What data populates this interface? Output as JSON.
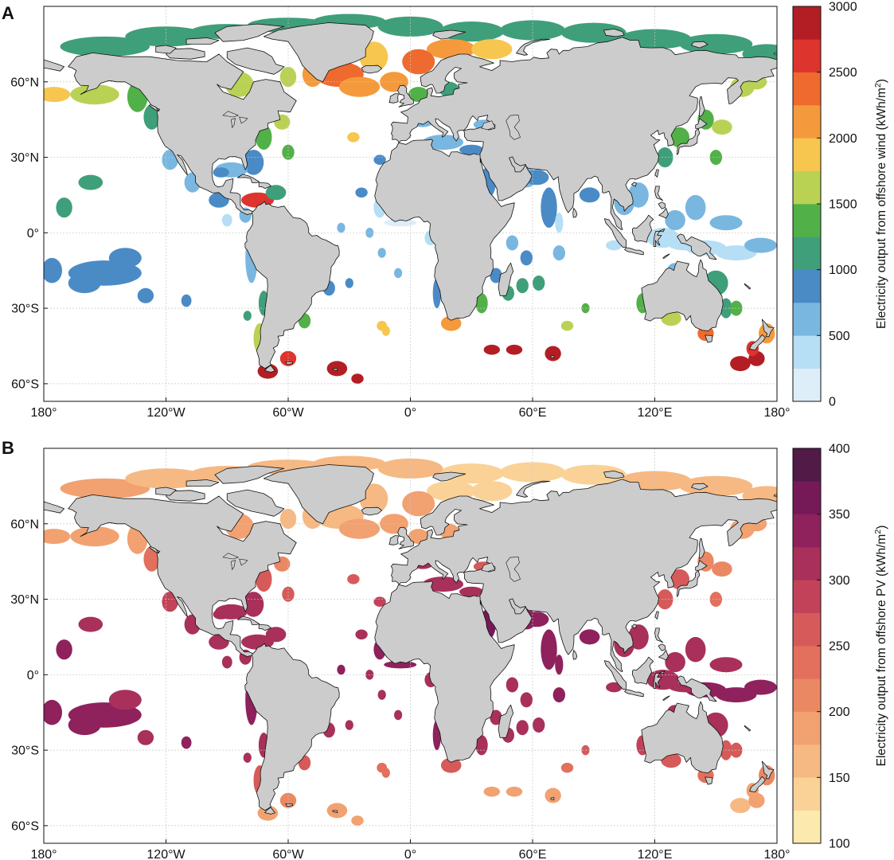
{
  "colors": {
    "ocean": "#ffffff",
    "land": "#cccccc",
    "coast": "#111111",
    "grid": "#c8c8c8"
  },
  "panels": [
    {
      "id": "A",
      "letter": "A",
      "colorbar": {
        "label": "Electricity output from offshore wind (kWh/m",
        "label_sup": "2",
        "label_end": ")",
        "min": 0,
        "max": 3000,
        "ticks": [
          "0",
          "500",
          "1000",
          "1500",
          "2000",
          "2500",
          "3000"
        ],
        "colors": [
          "#deeef9",
          "#b6def4",
          "#79b7e1",
          "#4a8bc6",
          "#3f9f7a",
          "#52b048",
          "#b9d254",
          "#f6c64f",
          "#f59a3c",
          "#ee6a2f",
          "#dd342d",
          "#b31e24"
        ]
      }
    },
    {
      "id": "B",
      "letter": "B",
      "colorbar": {
        "label": "Electricity output from offshore PV (kWh/m",
        "label_sup": "2",
        "label_end": ")",
        "min": 100,
        "max": 400,
        "ticks": [
          "100",
          "150",
          "200",
          "250",
          "300",
          "350",
          "400"
        ],
        "colors": [
          "#fbe9ad",
          "#fad297",
          "#f6b983",
          "#f2a171",
          "#eb8864",
          "#e2705c",
          "#d65a5a",
          "#c24359",
          "#a8305b",
          "#8f215d",
          "#751a57",
          "#521a46"
        ]
      }
    }
  ],
  "axes": {
    "x_ticks": [
      "180°",
      "120°W",
      "60°W",
      "0°",
      "60°E",
      "120°E",
      "180°"
    ],
    "y_ticks": [
      "60°N",
      "30°N",
      "0°",
      "30°S",
      "60°S"
    ]
  },
  "chart_data": {
    "type": "heatmap",
    "projection": "equirectangular",
    "x_range": [
      -180,
      180
    ],
    "y_range": [
      -67,
      90
    ],
    "grid": true,
    "legend_placement": "right",
    "panels": [
      {
        "letter": "A",
        "variable": "Electricity output from offshore wind (kWh/m2)",
        "scale": [
          0,
          3000
        ],
        "regions": [
          {
            "lon": -40,
            "lat": 74,
            "value": 1100
          },
          {
            "lon": 5,
            "lat": 66,
            "value": 2200
          },
          {
            "lon": -25,
            "lat": 60,
            "value": 2400
          },
          {
            "lon": -68,
            "lat": -55,
            "value": 2900
          },
          {
            "lon": -35,
            "lat": -54,
            "value": 2900
          },
          {
            "lon": 45,
            "lat": -47,
            "value": 2900
          },
          {
            "lon": 70,
            "lat": -49,
            "value": 2900
          },
          {
            "lon": 160,
            "lat": -50,
            "value": 2900
          },
          {
            "lon": -150,
            "lat": -15,
            "value": 700
          },
          {
            "lon": 110,
            "lat": 5,
            "value": 400
          },
          {
            "lon": 0,
            "lat": 4,
            "value": 300
          },
          {
            "lon": 60,
            "lat": 15,
            "value": 800
          },
          {
            "lon": 140,
            "lat": 38,
            "value": 1200
          },
          {
            "lon": 120,
            "lat": -30,
            "value": 1600
          }
        ]
      },
      {
        "letter": "B",
        "variable": "Electricity output from offshore PV (kWh/m2)",
        "scale": [
          100,
          400
        ],
        "regions": [
          {
            "lon": -40,
            "lat": 74,
            "value": 165
          },
          {
            "lon": 35,
            "lat": 75,
            "value": 120
          },
          {
            "lon": -25,
            "lat": 60,
            "value": 175
          },
          {
            "lon": 15,
            "lat": 37,
            "value": 330
          },
          {
            "lon": -80,
            "lat": 22,
            "value": 320
          },
          {
            "lon": 60,
            "lat": 18,
            "value": 340
          },
          {
            "lon": 115,
            "lat": -10,
            "value": 330
          },
          {
            "lon": -150,
            "lat": -15,
            "value": 330
          },
          {
            "lon": -68,
            "lat": -55,
            "value": 190
          },
          {
            "lon": 45,
            "lat": -47,
            "value": 180
          },
          {
            "lon": 160,
            "lat": -50,
            "value": 170
          },
          {
            "lon": 140,
            "lat": 38,
            "value": 250
          }
        ]
      }
    ]
  }
}
